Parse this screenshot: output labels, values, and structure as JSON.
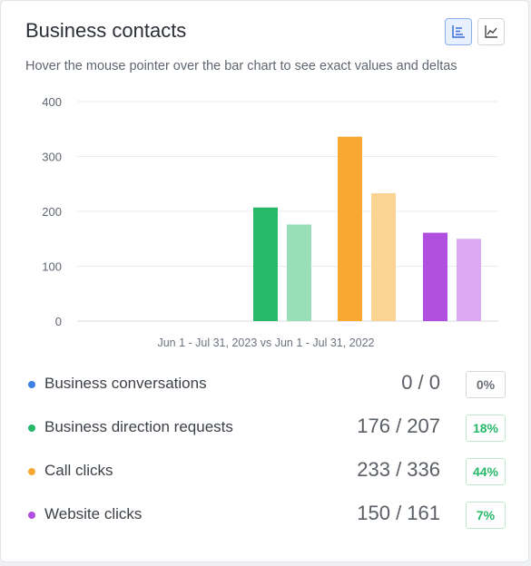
{
  "header": {
    "title": "Business contacts",
    "subtitle": "Hover the mouse pointer over the bar chart to see exact values and deltas",
    "view_toggle": {
      "bar_icon": "bar-chart-icon",
      "line_icon": "line-chart-icon",
      "selected": "bar"
    }
  },
  "chart_data": {
    "type": "bar",
    "xlabel": "Jun 1 - Jul 31, 2023 vs Jun 1 - Jul 31, 2022",
    "ylabel": "",
    "ylim": [
      0,
      400
    ],
    "yticks": [
      "400",
      "300",
      "200",
      "100",
      "0"
    ],
    "grid": true,
    "categories": [
      "Business conversations",
      "Business direction requests",
      "Call clicks",
      "Website clicks"
    ],
    "series": [
      {
        "values": [
          0,
          207,
          336,
          161
        ],
        "color": "#27b86a"
      },
      {
        "values": [
          0,
          176,
          233,
          150
        ],
        "color": "#98dfb8"
      }
    ],
    "category_colors": [
      [
        "#3d7fe8",
        "#a9c6f4"
      ],
      [
        "#27b86a",
        "#98dfb8"
      ],
      [
        "#f9a932",
        "#fbd494"
      ],
      [
        "#b14fe0",
        "#dcaaf0"
      ]
    ]
  },
  "metrics": [
    {
      "label": "Business conversations",
      "value": "0 / 0",
      "delta": "0%",
      "dot_color": "#3d7fe8",
      "delta_color": "#6b7078",
      "delta_border": "#d5d8dc"
    },
    {
      "label": "Business direction requests",
      "value": "176 / 207",
      "delta": "18%",
      "dot_color": "#27b86a",
      "delta_color": "#27b86a",
      "delta_border": "#bfe8cf"
    },
    {
      "label": "Call clicks",
      "value": "233 / 336",
      "delta": "44%",
      "dot_color": "#f9a932",
      "delta_color": "#27b86a",
      "delta_border": "#bfe8cf"
    },
    {
      "label": "Website clicks",
      "value": "150 / 161",
      "delta": "7%",
      "dot_color": "#b14fe0",
      "delta_color": "#27b86a",
      "delta_border": "#bfe8cf"
    }
  ]
}
